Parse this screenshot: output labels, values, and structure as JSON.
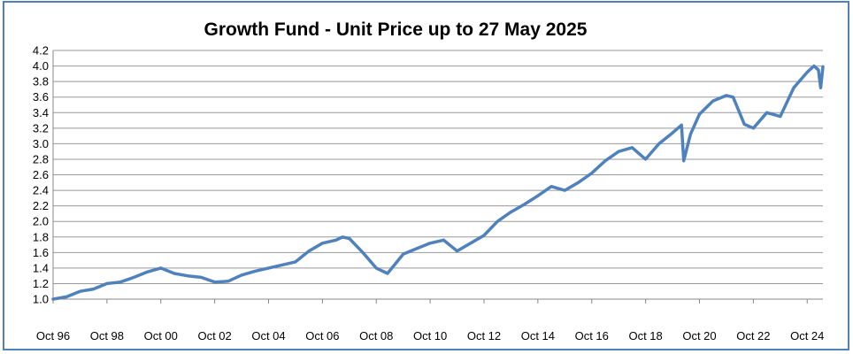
{
  "chart_data": {
    "type": "line",
    "title": "Growth Fund - Unit Price up to 27 May 2025",
    "xlabel": "",
    "ylabel": "",
    "x_ticks": [
      "Oct 96",
      "Oct 98",
      "Oct 00",
      "Oct 02",
      "Oct 04",
      "Oct 06",
      "Oct 08",
      "Oct 10",
      "Oct 12",
      "Oct 14",
      "Oct 16",
      "Oct 18",
      "Oct 20",
      "Oct 22",
      "Oct 24"
    ],
    "y_ticks": [
      "1.0",
      "1.2",
      "1.4",
      "1.6",
      "1.8",
      "2.0",
      "2.2",
      "2.4",
      "2.6",
      "2.8",
      "3.0",
      "3.2",
      "3.4",
      "3.6",
      "3.8",
      "4.0",
      "4.2"
    ],
    "ylim": [
      1.0,
      4.2
    ],
    "xlim": [
      "1996-10",
      "2025-05"
    ],
    "grid": true,
    "line_color": "#4F81BD",
    "frame_color": "#4F81BD",
    "series": [
      {
        "x": [
          "1996-10",
          "1997-04",
          "1997-10",
          "1998-04",
          "1998-10",
          "1999-04",
          "1999-10",
          "2000-04",
          "2000-10",
          "2001-04",
          "2001-10",
          "2002-04",
          "2002-10",
          "2003-04",
          "2003-10",
          "2004-04",
          "2004-10",
          "2005-04",
          "2005-10",
          "2006-04",
          "2006-10",
          "2007-04",
          "2007-07",
          "2007-10",
          "2008-04",
          "2008-10",
          "2009-03",
          "2009-10",
          "2010-04",
          "2010-10",
          "2011-04",
          "2011-10",
          "2012-04",
          "2012-10",
          "2013-04",
          "2013-10",
          "2014-04",
          "2014-10",
          "2015-04",
          "2015-10",
          "2016-04",
          "2016-10",
          "2017-04",
          "2017-10",
          "2018-04",
          "2018-10",
          "2019-04",
          "2019-10",
          "2020-02",
          "2020-03",
          "2020-06",
          "2020-10",
          "2021-04",
          "2021-10",
          "2022-01",
          "2022-06",
          "2022-10",
          "2023-04",
          "2023-10",
          "2024-04",
          "2024-10",
          "2025-01",
          "2025-03",
          "2025-04",
          "2025-05"
        ],
        "y": [
          1.0,
          1.03,
          1.1,
          1.13,
          1.2,
          1.22,
          1.28,
          1.35,
          1.4,
          1.33,
          1.3,
          1.28,
          1.22,
          1.23,
          1.31,
          1.36,
          1.4,
          1.44,
          1.48,
          1.62,
          1.72,
          1.76,
          1.8,
          1.78,
          1.6,
          1.4,
          1.33,
          1.58,
          1.65,
          1.72,
          1.76,
          1.62,
          1.72,
          1.82,
          2.0,
          2.12,
          2.22,
          2.33,
          2.45,
          2.4,
          2.5,
          2.62,
          2.78,
          2.9,
          2.95,
          2.8,
          3.0,
          3.14,
          3.24,
          2.78,
          3.12,
          3.38,
          3.55,
          3.62,
          3.6,
          3.25,
          3.2,
          3.4,
          3.35,
          3.72,
          3.92,
          4.0,
          3.95,
          3.72,
          3.99
        ]
      }
    ]
  }
}
